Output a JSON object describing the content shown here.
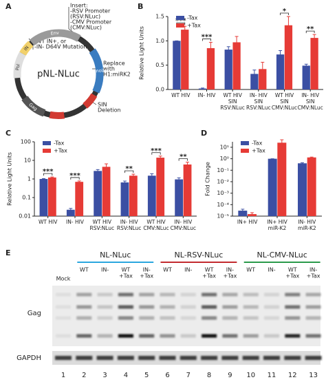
{
  "panel_a": {
    "letter": "A",
    "plasmid": "pNL-NLuc",
    "segments": [
      "Env",
      "Pol",
      "IN",
      "NanoLuc",
      "Gag"
    ],
    "insert": [
      "Insert:",
      "-RSV Promoter",
      "(RSV:NLuc)",
      "-CMV Promoter",
      "(CMV:NLuc)"
    ],
    "mutation": [
      "-WT IN+, or",
      "-IN- D64V Mutation"
    ],
    "replace": [
      "Replace",
      "with",
      "H1:miRK2"
    ],
    "sin": [
      "SIN",
      "Deletion"
    ]
  },
  "chart_data": [
    {
      "type": "bar",
      "panel": "B",
      "ylabel": "Relative Light Units",
      "log": false,
      "categories": [
        [
          "WT HIV"
        ],
        [
          "IN- HIV"
        ],
        [
          "WT HIV",
          "SIN",
          "RSV:NLuc"
        ],
        [
          "IN- HIV",
          "SIN",
          "RSV:NLuc"
        ],
        [
          "WT HIV",
          "SIN",
          "CMV:NLuc"
        ],
        [
          "IN- HIV",
          "SIN",
          "CMV:NLuc"
        ]
      ],
      "series": [
        {
          "name": "-Tax",
          "color": "#3b4fa3",
          "values": [
            1.0,
            0.02,
            0.82,
            0.32,
            0.72,
            0.49
          ],
          "errors": [
            0,
            0.01,
            0.06,
            0.08,
            0.08,
            0.03
          ]
        },
        {
          "name": "+Tax",
          "color": "#e63b36",
          "values": [
            1.23,
            0.85,
            0.97,
            0.42,
            1.32,
            1.06
          ],
          "errors": [
            0.07,
            0.12,
            0.12,
            0.14,
            0.18,
            0.07
          ]
        }
      ],
      "ylim": [
        0,
        1.5
      ],
      "yticks": [
        {
          "value": 0,
          "label": "0.0"
        },
        0.5,
        {
          "value": 1,
          "label": "1.0"
        },
        1.5
      ],
      "legend": "top-left",
      "annotations": [
        {
          "category": 0,
          "text": "***"
        },
        {
          "category": 1,
          "text": "***"
        },
        {
          "category": 4,
          "text": "*"
        },
        {
          "category": 5,
          "text": "**"
        }
      ]
    },
    {
      "type": "bar",
      "panel": "C",
      "ylabel": "Relative Light Units",
      "log": true,
      "categories": [
        [
          "WT HIV"
        ],
        [
          "IN- HIV"
        ],
        [
          "WT HIV",
          "RSV:NLuc"
        ],
        [
          "IN- HIV",
          "RSV:NLuc"
        ],
        [
          "WT HIV",
          "CMV:NLuc"
        ],
        [
          "IN- HIV",
          "CMV:NLuc"
        ]
      ],
      "series": [
        {
          "name": "-Tax",
          "color": "#3b4fa3",
          "values": [
            1.0,
            0.022,
            2.7,
            0.65,
            1.5,
            0.95
          ],
          "errors": [
            0.05,
            0.004,
            0.5,
            0.12,
            0.4,
            0.2
          ]
        },
        {
          "name": "+Tax",
          "color": "#e63b36",
          "values": [
            1.2,
            0.7,
            4.5,
            1.5,
            14,
            6
          ],
          "errors": [
            0.08,
            0.08,
            2,
            0.3,
            3,
            2
          ]
        }
      ],
      "ylim": [
        0.01,
        100
      ],
      "yticks": [
        0.01,
        0.1,
        1,
        10,
        100
      ],
      "legend": "top-left",
      "annotations": [
        {
          "category": 0,
          "text": "***"
        },
        {
          "category": 1,
          "text": "***"
        },
        {
          "category": 3,
          "text": "**"
        },
        {
          "category": 4,
          "text": "***"
        },
        {
          "category": 5,
          "text": "**"
        }
      ]
    },
    {
      "type": "bar",
      "panel": "D",
      "ylabel": "Fold Change",
      "log": true,
      "categories": [
        [
          "IN+ HIV"
        ],
        [
          "IN+ HIV",
          "miR-K2"
        ],
        [
          "IN- HIV",
          "miR-K2"
        ]
      ],
      "series": [
        {
          "name": "-Tax",
          "color": "#3b4fa3",
          "values": [
            3e-05,
            1,
            0.4
          ],
          "errors": [
            1e-05,
            0,
            0.05
          ]
        },
        {
          "name": "+Tax",
          "color": "#e63b36",
          "values": [
            1.5e-05,
            25,
            1.3
          ],
          "errors": [
            5e-06,
            20,
            0.1
          ]
        }
      ],
      "ylim": [
        1e-05,
        30
      ],
      "yticks": [
        {
          "value": 1e-05,
          "label": "10⁻⁵"
        },
        {
          "value": 0.0001,
          "label": "10⁻⁴"
        },
        {
          "value": 0.001,
          "label": "10⁻³"
        },
        {
          "value": 0.01,
          "label": "10⁻²"
        },
        {
          "value": 0.1,
          "label": "10⁻¹"
        },
        {
          "value": 1,
          "label": "10⁰"
        },
        {
          "value": 10,
          "label": "10¹"
        }
      ],
      "legend": "top-left",
      "annotations": []
    }
  ],
  "panel_e": {
    "letter": "E",
    "groups": [
      {
        "name": "NL-NLuc",
        "color": "#2aa6df"
      },
      {
        "name": "NL-RSV-NLuc",
        "color": "#c22a2e"
      },
      {
        "name": "NL-CMV-NLuc",
        "color": "#2a9a4a"
      }
    ],
    "lanes": [
      {
        "label": [
          "Mock"
        ],
        "number": 1
      },
      {
        "label": [
          "WT"
        ],
        "number": 2
      },
      {
        "label": [
          "IN-"
        ],
        "number": 3
      },
      {
        "label": [
          "WT",
          "+Tax"
        ],
        "number": 4
      },
      {
        "label": [
          "IN-",
          "+Tax"
        ],
        "number": 5
      },
      {
        "label": [
          "WT"
        ],
        "number": 6
      },
      {
        "label": [
          "IN-"
        ],
        "number": 7
      },
      {
        "label": [
          "WT",
          "+Tax"
        ],
        "number": 8
      },
      {
        "label": [
          "IN-",
          "+Tax"
        ],
        "number": 9
      },
      {
        "label": [
          "WT"
        ],
        "number": 10
      },
      {
        "label": [
          "IN-"
        ],
        "number": 11
      },
      {
        "label": [
          "WT",
          "+Tax"
        ],
        "number": 12
      },
      {
        "label": [
          "IN-",
          "+Tax"
        ],
        "number": 13
      }
    ],
    "blots": [
      "Gag",
      "GAPDH"
    ]
  }
}
